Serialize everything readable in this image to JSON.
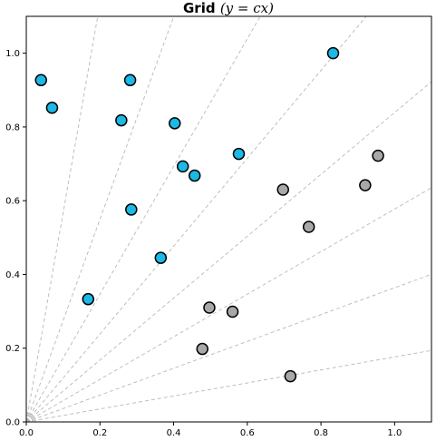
{
  "chart_data": {
    "type": "scatter",
    "title": "Grid",
    "title_math": "(y = cx)",
    "xlabel": "",
    "ylabel": "",
    "xlim": [
      0,
      1.1
    ],
    "ylim": [
      0,
      1.1
    ],
    "x_ticks": [
      "0.0",
      "0.2",
      "0.4",
      "0.6",
      "0.8",
      "1.0"
    ],
    "y_ticks": [
      "0.0",
      "0.2",
      "0.4",
      "0.6",
      "0.8",
      "1.0"
    ],
    "grid": "radial dashed lines y = cx",
    "grid_angles_deg": [
      10,
      20,
      30,
      40,
      50,
      60,
      70,
      80
    ],
    "series": [
      {
        "color": "#1ab9e6",
        "points": [
          [
            0.04,
            0.927
          ],
          [
            0.07,
            0.852
          ],
          [
            0.282,
            0.927
          ],
          [
            0.258,
            0.818
          ],
          [
            0.403,
            0.81
          ],
          [
            0.833,
            1.0
          ],
          [
            0.425,
            0.693
          ],
          [
            0.457,
            0.668
          ],
          [
            0.577,
            0.727
          ],
          [
            0.285,
            0.576
          ],
          [
            0.365,
            0.445
          ],
          [
            0.168,
            0.333
          ]
        ]
      },
      {
        "color": "#a8a8a8",
        "points": [
          [
            0.955,
            0.722
          ],
          [
            0.92,
            0.642
          ],
          [
            0.697,
            0.63
          ],
          [
            0.767,
            0.529
          ],
          [
            0.497,
            0.31
          ],
          [
            0.56,
            0.299
          ],
          [
            0.478,
            0.198
          ],
          [
            0.717,
            0.124
          ]
        ]
      }
    ]
  }
}
